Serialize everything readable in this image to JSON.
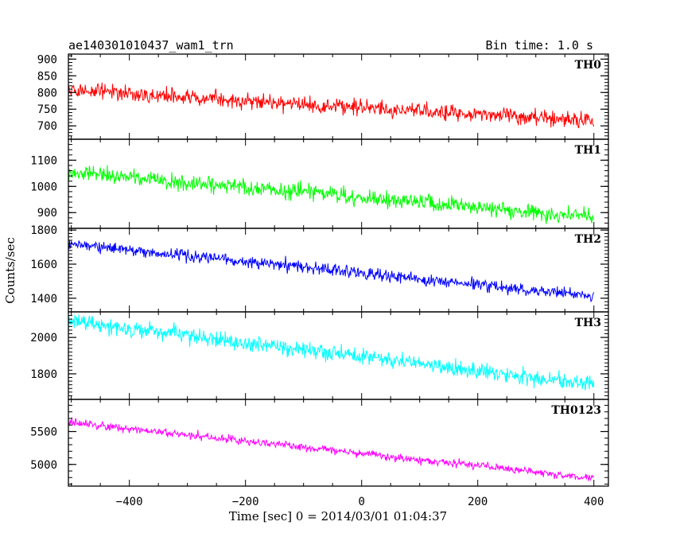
{
  "header": {
    "title": "ae140301010437_wam1_trn",
    "bin_time": "Bin time: 1.0 s"
  },
  "chart_data": {
    "type": "line",
    "xlabel": "Time [sec] 0 = 2014/03/01 01:04:37",
    "ylabel": "Counts/sec",
    "xlim": [
      -505,
      425
    ],
    "x_ticks": [
      -400,
      -200,
      0,
      200,
      400
    ],
    "x_tick_labels": [
      "−400",
      "−200",
      "0",
      "200",
      "400"
    ],
    "x_minor_step": 50,
    "x_range": [
      -505,
      400
    ],
    "bin_time_s": 1.0,
    "grid": false,
    "series": [
      {
        "name": "TH0",
        "color": "#ff0000",
        "ylim": [
          660,
          915
        ],
        "y_ticks": [
          700,
          750,
          800,
          850,
          900
        ],
        "y_minor_step": 10,
        "trend": {
          "start": 805,
          "end": 715
        },
        "noise_sd": 30,
        "range": [
          660,
          910
        ]
      },
      {
        "name": "TH1",
        "color": "#00ff00",
        "ylim": [
          840,
          1180
        ],
        "y_ticks": [
          900,
          1000,
          1100
        ],
        "y_minor_step": 20,
        "trend": {
          "start": 1055,
          "end": 880
        },
        "noise_sd": 40,
        "range": [
          840,
          1175
        ]
      },
      {
        "name": "TH2",
        "color": "#0000ff",
        "ylim": [
          1320,
          1810
        ],
        "y_ticks": [
          1400,
          1600,
          1800
        ],
        "y_minor_step": 20,
        "trend": {
          "start": 1720,
          "end": 1410
        },
        "noise_sd": 45,
        "range": [
          1370,
          1810
        ]
      },
      {
        "name": "TH3",
        "color": "#00ffff",
        "ylim": [
          1660,
          2140
        ],
        "y_ticks": [
          1800,
          2000
        ],
        "y_minor_step": 20,
        "trend": {
          "start": 2090,
          "end": 1740
        },
        "noise_sd": 55,
        "range": [
          1660,
          2140
        ]
      },
      {
        "name": "TH0123",
        "color": "#ff00ff",
        "ylim": [
          4670,
          5990
        ],
        "y_ticks": [
          5000,
          5500
        ],
        "y_minor_step": 100,
        "trend": {
          "start": 5640,
          "end": 4790
        },
        "noise_sd": 75,
        "range": [
          4680,
          5870
        ]
      }
    ]
  }
}
